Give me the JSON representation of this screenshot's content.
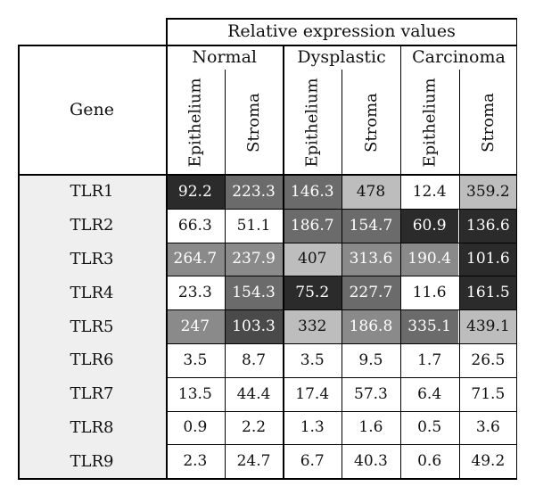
{
  "chart_data": {
    "type": "table",
    "title": "Relative expression values",
    "row_header": "Gene",
    "groups": [
      "Normal",
      "Dysplastic",
      "Carcinoma"
    ],
    "subcolumns": [
      "Epithelium",
      "Stroma",
      "Epithelium",
      "Stroma",
      "Epithelium",
      "Stroma"
    ],
    "rows": [
      {
        "gene": "TLR1",
        "values": [
          "92.2",
          "223.3",
          "146.3",
          "478",
          "12.4",
          "359.2"
        ]
      },
      {
        "gene": "TLR2",
        "values": [
          "66.3",
          "51.1",
          "186.7",
          "154.7",
          "60.9",
          "136.6"
        ]
      },
      {
        "gene": "TLR3",
        "values": [
          "264.7",
          "237.9",
          "407",
          "313.6",
          "190.4",
          "101.6"
        ]
      },
      {
        "gene": "TLR4",
        "values": [
          "23.3",
          "154.3",
          "75.2",
          "227.7",
          "11.6",
          "161.5"
        ]
      },
      {
        "gene": "TLR5",
        "values": [
          "247",
          "103.3",
          "332",
          "186.8",
          "335.1",
          "439.1"
        ]
      },
      {
        "gene": "TLR6",
        "values": [
          "3.5",
          "8.7",
          "3.5",
          "9.5",
          "1.7",
          "26.5"
        ]
      },
      {
        "gene": "TLR7",
        "values": [
          "13.5",
          "44.4",
          "17.4",
          "57.3",
          "6.4",
          "71.5"
        ]
      },
      {
        "gene": "TLR8",
        "values": [
          "0.9",
          "2.2",
          "1.3",
          "1.6",
          "0.5",
          "3.6"
        ]
      },
      {
        "gene": "TLR9",
        "values": [
          "2.3",
          "24.7",
          "6.7",
          "40.3",
          "0.6",
          "49.2"
        ]
      }
    ],
    "cell_colors": [
      [
        "#2b2b2b",
        "#6b6b6b",
        "#6b6b6b",
        "#bdbdbd",
        "#ffffff",
        "#bdbdbd"
      ],
      [
        "#ffffff",
        "#ffffff",
        "#6b6b6b",
        "#6b6b6b",
        "#2b2b2b",
        "#2b2b2b"
      ],
      [
        "#8a8a8a",
        "#8a8a8a",
        "#bdbdbd",
        "#8a8a8a",
        "#8a8a8a",
        "#2b2b2b"
      ],
      [
        "#ffffff",
        "#6b6b6b",
        "#2b2b2b",
        "#6b6b6b",
        "#ffffff",
        "#2b2b2b"
      ],
      [
        "#8a8a8a",
        "#4a4a4a",
        "#bdbdbd",
        "#8a8a8a",
        "#6b6b6b",
        "#bdbdbd"
      ],
      [
        "#ffffff",
        "#ffffff",
        "#ffffff",
        "#ffffff",
        "#ffffff",
        "#ffffff"
      ],
      [
        "#ffffff",
        "#ffffff",
        "#ffffff",
        "#ffffff",
        "#ffffff",
        "#ffffff"
      ],
      [
        "#ffffff",
        "#ffffff",
        "#ffffff",
        "#ffffff",
        "#ffffff",
        "#ffffff"
      ],
      [
        "#ffffff",
        "#ffffff",
        "#ffffff",
        "#ffffff",
        "#ffffff",
        "#ffffff"
      ]
    ],
    "text_colors": [
      [
        "#ffffff",
        "#ffffff",
        "#ffffff",
        "#111111",
        "#111111",
        "#111111"
      ],
      [
        "#111111",
        "#111111",
        "#ffffff",
        "#ffffff",
        "#ffffff",
        "#ffffff"
      ],
      [
        "#ffffff",
        "#ffffff",
        "#111111",
        "#ffffff",
        "#ffffff",
        "#ffffff"
      ],
      [
        "#111111",
        "#ffffff",
        "#ffffff",
        "#ffffff",
        "#111111",
        "#ffffff"
      ],
      [
        "#ffffff",
        "#ffffff",
        "#111111",
        "#ffffff",
        "#ffffff",
        "#111111"
      ],
      [
        "#111111",
        "#111111",
        "#111111",
        "#111111",
        "#111111",
        "#111111"
      ],
      [
        "#111111",
        "#111111",
        "#111111",
        "#111111",
        "#111111",
        "#111111"
      ],
      [
        "#111111",
        "#111111",
        "#111111",
        "#111111",
        "#111111",
        "#111111"
      ],
      [
        "#111111",
        "#111111",
        "#111111",
        "#111111",
        "#111111",
        "#111111"
      ]
    ]
  }
}
